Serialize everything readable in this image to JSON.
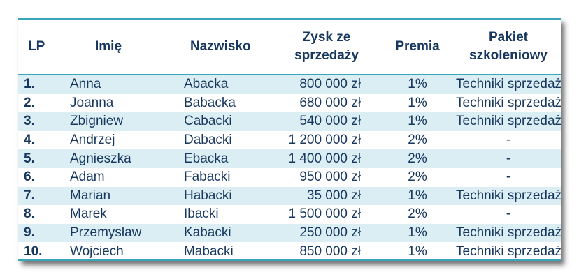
{
  "table": {
    "headers": {
      "lp": "LP",
      "imie": "Imię",
      "nazwisko": "Nazwisko",
      "zysk_line1": "Zysk ze",
      "zysk_line2": "sprzedaży",
      "premia": "Premia",
      "pakiet": "Pakiet szkoleniowy"
    },
    "rows": [
      {
        "lp": "1.",
        "imie": "Anna",
        "nazwisko": "Abacka",
        "zysk": "800 000 zł",
        "premia": "1%",
        "pakiet": "Techniki sprzedaży"
      },
      {
        "lp": "2.",
        "imie": "Joanna",
        "nazwisko": "Babacka",
        "zysk": "680 000 zł",
        "premia": "1%",
        "pakiet": "Techniki sprzedaży"
      },
      {
        "lp": "3.",
        "imie": "Zbigniew",
        "nazwisko": "Cabacki",
        "zysk": "540 000 zł",
        "premia": "1%",
        "pakiet": "Techniki sprzedaży"
      },
      {
        "lp": "4.",
        "imie": "Andrzej",
        "nazwisko": "Dabacki",
        "zysk": "1 200 000 zł",
        "premia": "2%",
        "pakiet": "-"
      },
      {
        "lp": "5.",
        "imie": "Agnieszka",
        "nazwisko": "Ebacka",
        "zysk": "1 400 000 zł",
        "premia": "2%",
        "pakiet": "-"
      },
      {
        "lp": "6.",
        "imie": "Adam",
        "nazwisko": "Fabacki",
        "zysk": "950 000 zł",
        "premia": "2%",
        "pakiet": "-"
      },
      {
        "lp": "7.",
        "imie": "Marian",
        "nazwisko": "Habacki",
        "zysk": "35 000 zł",
        "premia": "1%",
        "pakiet": "Techniki sprzedaży"
      },
      {
        "lp": "8.",
        "imie": "Marek",
        "nazwisko": "Ibacki",
        "zysk": "1 500 000 zł",
        "premia": "2%",
        "pakiet": "-"
      },
      {
        "lp": "9.",
        "imie": "Przemysław",
        "nazwisko": "Kabacki",
        "zysk": "250 000 zł",
        "premia": "1%",
        "pakiet": "Techniki sprzedaży"
      },
      {
        "lp": "10.",
        "imie": "Wojciech",
        "nazwisko": "Mabacki",
        "zysk": "850 000 zł",
        "premia": "1%",
        "pakiet": "Techniki sprzedaży"
      }
    ]
  },
  "colors": {
    "accent_border": "#3aa6b9",
    "row_shade": "#daeef3",
    "text": "#17375e"
  }
}
